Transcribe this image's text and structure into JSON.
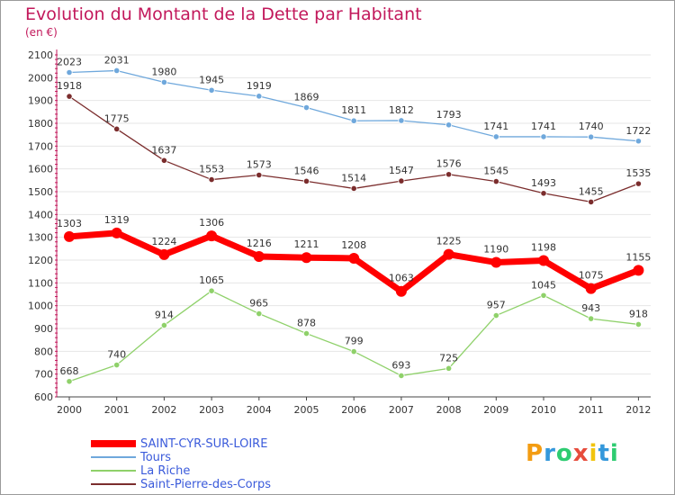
{
  "header": {
    "title": "Evolution du Montant de la Dette par Habitant",
    "subtitle": "(en €)"
  },
  "logo": {
    "letters": [
      {
        "char": "P",
        "color": "#f39c12"
      },
      {
        "char": "r",
        "color": "#3498db"
      },
      {
        "char": "o",
        "color": "#2ecc71"
      },
      {
        "char": "x",
        "color": "#e74c3c"
      },
      {
        "char": "i",
        "color": "#f1c40f"
      },
      {
        "char": "t",
        "color": "#3498db"
      },
      {
        "char": "i",
        "color": "#2ecc71"
      }
    ]
  },
  "chart_data": {
    "type": "line",
    "title": "Evolution du Montant de la Dette par Habitant",
    "subtitle": "(en €)",
    "xlabel": "",
    "ylabel": "",
    "x": [
      "2000",
      "2001",
      "2002",
      "2003",
      "2004",
      "2005",
      "2006",
      "2007",
      "2008",
      "2009",
      "2010",
      "2011",
      "2012"
    ],
    "ylim": [
      600,
      2100
    ],
    "yticks": [
      600,
      700,
      800,
      900,
      1000,
      1100,
      1200,
      1300,
      1400,
      1500,
      1600,
      1700,
      1800,
      1900,
      2000,
      2100
    ],
    "grid": "horizontal",
    "legend_position": "bottom-left",
    "series": [
      {
        "name": "SAINT-CYR-SUR-LOIRE",
        "color": "#ff0000",
        "emphasis": true,
        "values": [
          1303,
          1319,
          1224,
          1306,
          1216,
          1211,
          1208,
          1063,
          1225,
          1190,
          1198,
          1075,
          1155
        ]
      },
      {
        "name": "Tours",
        "color": "#6fa8dc",
        "emphasis": false,
        "values": [
          2023,
          2031,
          1980,
          1945,
          1919,
          1869,
          1811,
          1812,
          1793,
          1741,
          1741,
          1740,
          1722
        ]
      },
      {
        "name": "La Riche",
        "color": "#8fd16a",
        "emphasis": false,
        "values": [
          668,
          740,
          914,
          1065,
          965,
          878,
          799,
          693,
          725,
          957,
          1045,
          943,
          918
        ]
      },
      {
        "name": "Saint-Pierre-des-Corps",
        "color": "#7b2d2d",
        "emphasis": false,
        "values": [
          1918,
          1775,
          1637,
          1553,
          1573,
          1546,
          1514,
          1547,
          1576,
          1545,
          1493,
          1455,
          1535
        ]
      }
    ]
  }
}
